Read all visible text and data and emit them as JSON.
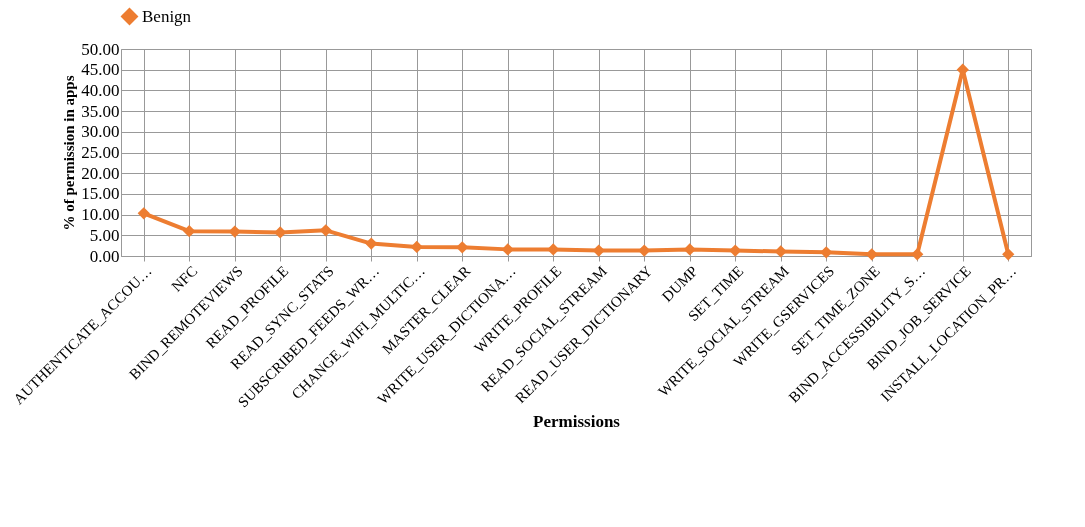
{
  "chart_data": {
    "type": "line",
    "xlabel": "Permissions",
    "ylabel": "% of permission in apps",
    "categories": [
      "AUTHENTICATE_ACCOU…",
      "NFC",
      "BIND_REMOTEVIEWS",
      "READ_PROFILE",
      "READ_SYNC_STATS",
      "SUBSCRIBED_FEEDS_WR…",
      "CHANGE_WIFI_MULTIC…",
      "MASTER_CLEAR",
      "WRITE_USER_DICTIONA…",
      "WRITE_PROFILE",
      "READ_SOCIAL_STREAM",
      "READ_USER_DICTIONARY",
      "DUMP",
      "SET_TIME",
      "WRITE_SOCIAL_STREAM",
      "WRITE_GSERVICES",
      "SET_TIME_ZONE",
      "BIND_ACCESSIBILITY_S…",
      "BIND_JOB_SERVICE",
      "INSTALL_LOCATION_PR…"
    ],
    "series": [
      {
        "name": "Benign",
        "color": "#ed7d31",
        "values": [
          10.3,
          6.0,
          5.9,
          5.7,
          6.2,
          3.0,
          2.2,
          2.1,
          1.6,
          1.6,
          1.3,
          1.3,
          1.6,
          1.3,
          1.1,
          0.9,
          0.4,
          0.4,
          45.0,
          0.4
        ]
      }
    ],
    "ylim": [
      0,
      50
    ],
    "yticks": [
      {
        "value": 0,
        "label": "0.00"
      },
      {
        "value": 5,
        "label": "5.00"
      },
      {
        "value": 10,
        "label": "10.00"
      },
      {
        "value": 15,
        "label": "15.00"
      },
      {
        "value": 20,
        "label": "20.00"
      },
      {
        "value": 25,
        "label": "25.00"
      },
      {
        "value": 30,
        "label": "30.00"
      },
      {
        "value": 35,
        "label": "35.00"
      },
      {
        "value": 40,
        "label": "40.00"
      },
      {
        "value": 45,
        "label": "45.00"
      },
      {
        "value": 50,
        "label": "50.00"
      }
    ],
    "grid": true,
    "legend": "top",
    "marker": "diamond",
    "line_style": "solid"
  }
}
